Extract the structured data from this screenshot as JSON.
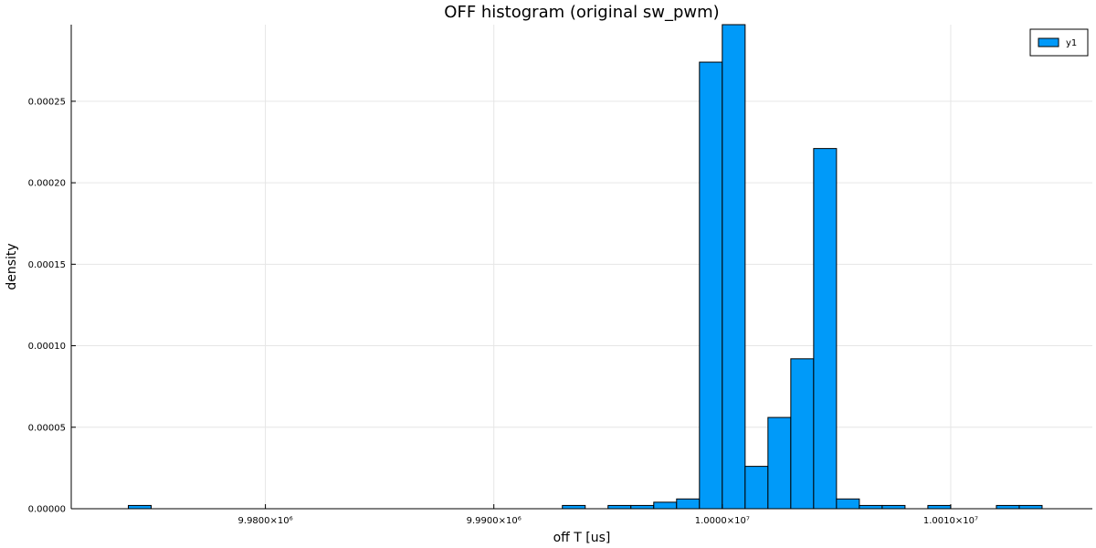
{
  "chart_data": {
    "type": "bar",
    "title": "OFF histogram (original sw_pwm)",
    "xlabel": "off T [us]",
    "ylabel": "density",
    "xlim": [
      9971500,
      10016200
    ],
    "ylim": [
      0,
      0.000297
    ],
    "grid": true,
    "legend_position": "top-right",
    "bar_color": "#009AF9",
    "edge_color": "#000000",
    "bin_width": 1000,
    "series": [
      {
        "name": "y1",
        "bins": [
          {
            "x0": 9974000,
            "x1": 9975000,
            "value": 2e-06
          },
          {
            "x0": 9975000,
            "x1": 9993000,
            "value": 0.0
          },
          {
            "x0": 9993000,
            "x1": 9994000,
            "value": 2e-06
          },
          {
            "x0": 9994000,
            "x1": 9995000,
            "value": 0.0
          },
          {
            "x0": 9995000,
            "x1": 9996000,
            "value": 2e-06
          },
          {
            "x0": 9996000,
            "x1": 9997000,
            "value": 2e-06
          },
          {
            "x0": 9997000,
            "x1": 9998000,
            "value": 4e-06
          },
          {
            "x0": 9998000,
            "x1": 9999000,
            "value": 6e-06
          },
          {
            "x0": 9999000,
            "x1": 10000000,
            "value": 0.000274
          },
          {
            "x0": 10000000,
            "x1": 10001000,
            "value": 0.000297
          },
          {
            "x0": 10001000,
            "x1": 10002000,
            "value": 2.6e-05
          },
          {
            "x0": 10002000,
            "x1": 10003000,
            "value": 5.6e-05
          },
          {
            "x0": 10003000,
            "x1": 10004000,
            "value": 9.2e-05
          },
          {
            "x0": 10004000,
            "x1": 10005000,
            "value": 0.000221
          },
          {
            "x0": 10005000,
            "x1": 10006000,
            "value": 6e-06
          },
          {
            "x0": 10006000,
            "x1": 10007000,
            "value": 2e-06
          },
          {
            "x0": 10007000,
            "x1": 10008000,
            "value": 2e-06
          },
          {
            "x0": 10008000,
            "x1": 10009000,
            "value": 0.0
          },
          {
            "x0": 10009000,
            "x1": 10010000,
            "value": 2e-06
          },
          {
            "x0": 10010000,
            "x1": 10012000,
            "value": 0.0
          },
          {
            "x0": 10012000,
            "x1": 10013000,
            "value": 2e-06
          },
          {
            "x0": 10013000,
            "x1": 10014000,
            "value": 2e-06
          }
        ]
      }
    ],
    "x_ticks": [
      {
        "value": 9980000,
        "label": "9.9800×10⁶"
      },
      {
        "value": 9990000,
        "label": "9.9900×10⁶"
      },
      {
        "value": 10000000,
        "label": "1.0000×10⁷"
      },
      {
        "value": 10010000,
        "label": "1.0010×10⁷"
      }
    ],
    "y_ticks": [
      {
        "value": 0.0,
        "label": "0.00000"
      },
      {
        "value": 5e-05,
        "label": "0.00005"
      },
      {
        "value": 0.0001,
        "label": "0.00010"
      },
      {
        "value": 0.00015,
        "label": "0.00015"
      },
      {
        "value": 0.0002,
        "label": "0.00020"
      },
      {
        "value": 0.00025,
        "label": "0.00025"
      }
    ]
  }
}
